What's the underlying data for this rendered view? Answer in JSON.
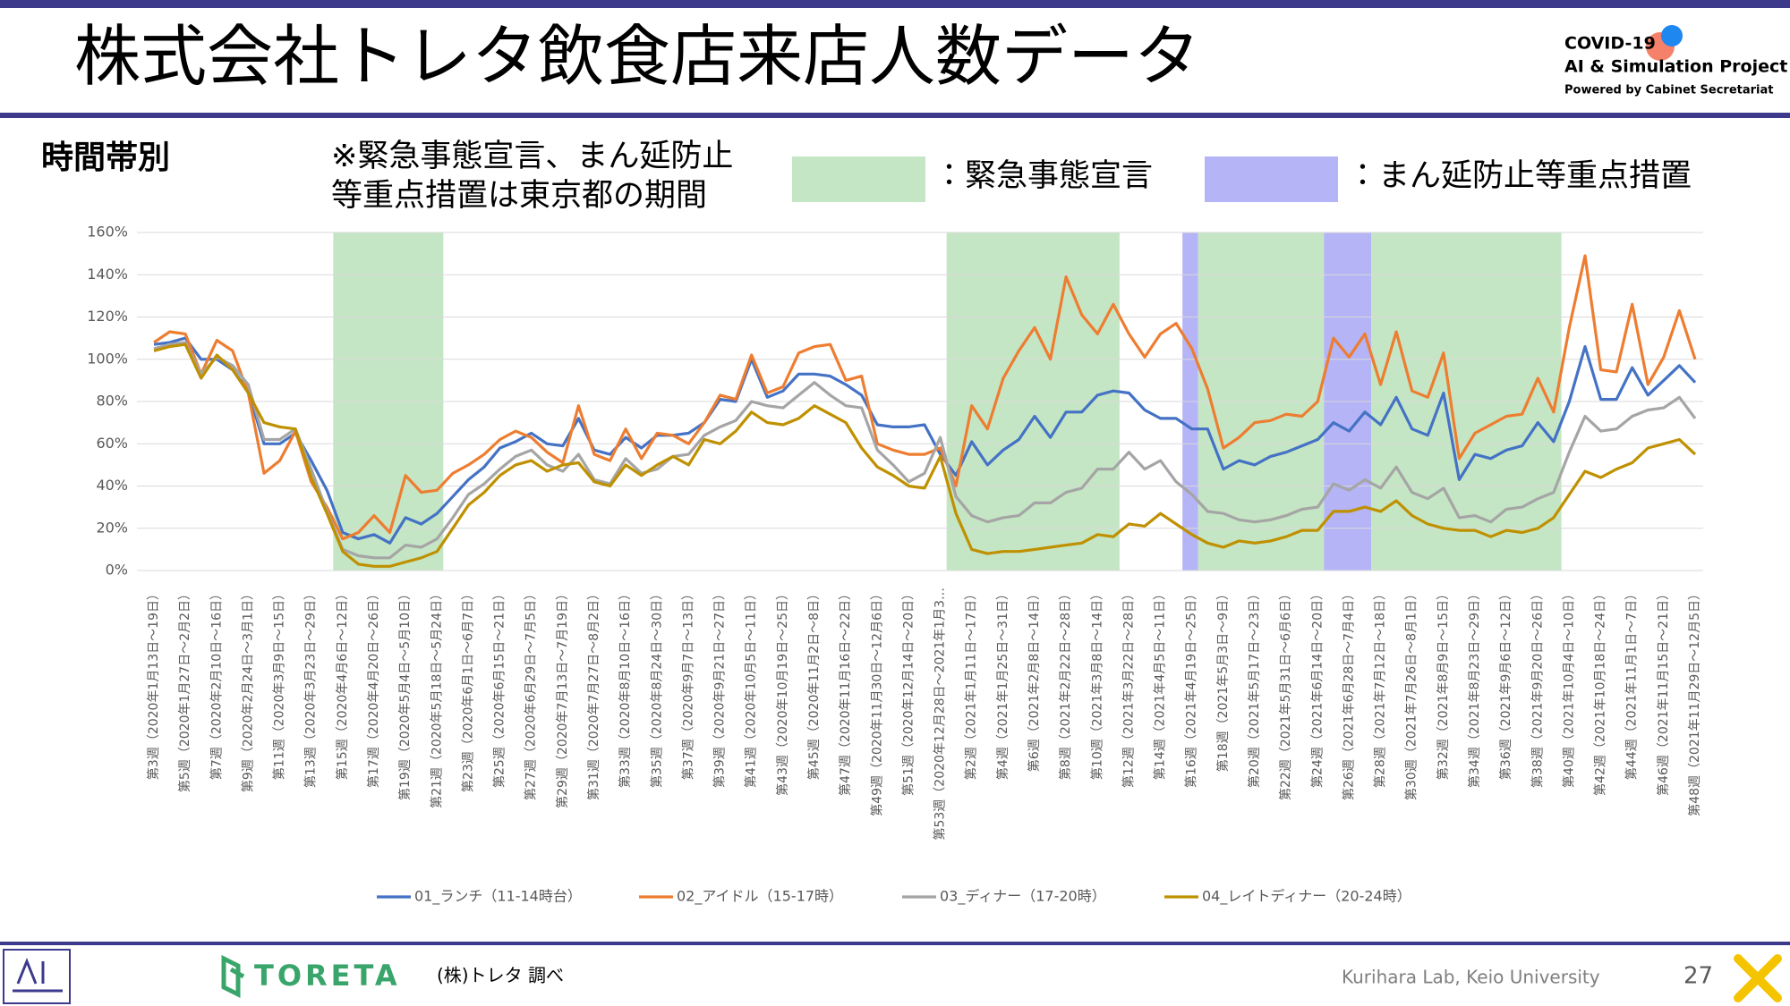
{
  "header": {
    "title": "株式会社トレタ飲食店来店人数データ",
    "logo_line1": "COVID-19",
    "logo_line2": "AI & Simulation Project",
    "logo_line3": "Powered by Cabinet Secretariat",
    "section": "時間帯別",
    "note": [
      "※緊急事態宣言、まん延防止",
      "等重点措置は東京都の期間"
    ]
  },
  "chart_data": {
    "type": "line",
    "categories": [
      "第3週（2020年1月13日～19日）",
      null,
      "第5週（2020年1月27日～2月2日）",
      null,
      "第7週（2020年2月10日～16日）",
      null,
      "第9週（2020年2月24日～3月1日）",
      null,
      "第11週（2020年3月9日～15日）",
      null,
      "第13週（2020年3月23日～29日）",
      null,
      "第15週（2020年4月6日～12日）",
      null,
      "第17週（2020年4月20日～26日）",
      null,
      "第19週（2020年5月4日～5月10日）",
      null,
      "第21週（2020年5月18日～5月24日）",
      null,
      "第23週（2020年6月1日～6月7日）",
      null,
      "第25週（2020年6月15日～21日）",
      null,
      "第27週（2020年6月29日～7月5日）",
      null,
      "第29週（2020年7月13日～7月19日）",
      null,
      "第31週（2020年7月27日～8月2日）",
      null,
      "第33週（2020年8月10日～16日）",
      null,
      "第35週（2020年8月24日～30日）",
      null,
      "第37週（2020年9月7日～13日）",
      null,
      "第39週（2020年9月21日～27日）",
      null,
      "第41週（2020年10月5日～11日）",
      null,
      "第43週（2020年10月19日～25日）",
      null,
      "第45週（2020年11月2日～8日）",
      null,
      "第47週（2020年11月16日～22日）",
      null,
      "第49週（2020年11月30日～12月6日）",
      null,
      "第51週（2020年12月14日～20日）",
      null,
      "第53週（2020年12月28日～2021年1月3…",
      null,
      "第2週（2021年1月11日～17日）",
      null,
      "第4週（2021年1月25日～31日）",
      null,
      "第6週（2021年2月8日～14日）",
      null,
      "第8週（2021年2月22日～28日）",
      null,
      "第10週（2021年3月8日～14日）",
      null,
      "第12週（2021年3月22日～28日）",
      null,
      "第14週（2021年4月5日～11日）",
      null,
      "第16週（2021年4月19日～25日）",
      null,
      "第18週（2021年5月3日～9日）",
      null,
      "第20週（2021年5月17日～23日）",
      null,
      "第22週（2021年5月31日～6月6日）",
      null,
      "第24週（2021年6月14日～20日）",
      null,
      "第26週（2021年6月28日～7月4日）",
      null,
      "第28週（2021年7月12日～18日）",
      null,
      "第30週（2021年7月26日～8月1日）",
      null,
      "第32週（2021年8月9日～15日）",
      null,
      "第34週（2021年8月23日～29日）",
      null,
      "第36週（2021年9月6日～12日）",
      null,
      "第38週（2021年9月20日～26日）",
      null,
      "第40週（2021年10月4日～10日）",
      null,
      "第42週（2021年10月18日～24日）",
      null,
      "第44週（2021年11月1日～7日）",
      null,
      "第46週（2021年11月15日～21日）",
      null,
      "第48週（2021年11月29日～12月5日）"
    ],
    "series": [
      {
        "name": "01_ランチ（11-14時台）",
        "color": "#4472c4",
        "values": [
          107,
          108,
          110,
          100,
          100,
          95,
          85,
          60,
          60,
          65,
          52,
          38,
          18,
          15,
          17,
          13,
          25,
          22,
          27,
          35,
          43,
          49,
          58,
          61,
          65,
          60,
          59,
          72,
          57,
          55,
          63,
          58,
          64,
          64,
          65,
          70,
          81,
          80,
          100,
          82,
          85,
          93,
          93,
          92,
          88,
          83,
          69,
          68,
          68,
          69,
          55,
          45,
          61,
          50,
          57,
          62,
          73,
          63,
          75,
          75,
          83,
          85,
          84,
          76,
          72,
          72,
          67,
          67,
          48,
          52,
          50,
          54,
          56,
          59,
          62,
          70,
          66,
          75,
          69,
          82,
          67,
          64,
          84,
          43,
          55,
          53,
          57,
          59,
          70,
          61,
          80,
          106,
          81,
          81,
          96,
          83,
          90,
          97,
          89
        ]
      },
      {
        "name": "02_アイドル（15-17時）",
        "color": "#ed7d31",
        "values": [
          108,
          113,
          112,
          93,
          109,
          104,
          84,
          46,
          52,
          66,
          42,
          30,
          15,
          18,
          26,
          18,
          45,
          37,
          38,
          46,
          50,
          55,
          62,
          66,
          63,
          56,
          51,
          78,
          55,
          52,
          67,
          53,
          65,
          64,
          60,
          70,
          83,
          81,
          102,
          84,
          87,
          103,
          106,
          107,
          90,
          92,
          60,
          57,
          55,
          55,
          58,
          40,
          78,
          67,
          91,
          104,
          115,
          100,
          139,
          121,
          112,
          126,
          112,
          101,
          112,
          117,
          105,
          86,
          58,
          63,
          70,
          71,
          74,
          73,
          80,
          110,
          101,
          112,
          88,
          113,
          85,
          82,
          103,
          53,
          65,
          69,
          73,
          74,
          91,
          75,
          115,
          149,
          95,
          94,
          126,
          88,
          101,
          123,
          100
        ]
      },
      {
        "name": "03_ディナー（17-20時）",
        "color": "#a5a5a5",
        "values": [
          105,
          107,
          108,
          93,
          101,
          97,
          88,
          62,
          62,
          67,
          48,
          28,
          10,
          7,
          6,
          6,
          12,
          11,
          15,
          25,
          36,
          41,
          48,
          54,
          57,
          50,
          47,
          55,
          43,
          41,
          53,
          46,
          48,
          54,
          55,
          64,
          68,
          71,
          80,
          78,
          77,
          83,
          89,
          83,
          78,
          77,
          57,
          50,
          42,
          46,
          63,
          35,
          26,
          23,
          25,
          26,
          32,
          32,
          37,
          39,
          48,
          48,
          56,
          48,
          52,
          42,
          36,
          28,
          27,
          24,
          23,
          24,
          26,
          29,
          30,
          41,
          38,
          43,
          39,
          49,
          37,
          34,
          39,
          25,
          26,
          23,
          29,
          30,
          34,
          37,
          56,
          73,
          66,
          67,
          73,
          76,
          77,
          82,
          72
        ]
      },
      {
        "name": "04_レイトディナー（20-24時）",
        "color": "#bf9000",
        "values": [
          104,
          106,
          107,
          91,
          102,
          95,
          84,
          70,
          68,
          67,
          44,
          27,
          9,
          3,
          2,
          2,
          4,
          6,
          9,
          20,
          31,
          37,
          45,
          50,
          52,
          47,
          50,
          51,
          42,
          40,
          50,
          45,
          50,
          54,
          50,
          62,
          60,
          66,
          75,
          70,
          69,
          72,
          78,
          74,
          70,
          58,
          49,
          45,
          40,
          39,
          54,
          27,
          10,
          8,
          9,
          9,
          10,
          11,
          12,
          13,
          17,
          16,
          22,
          21,
          27,
          22,
          17,
          13,
          11,
          14,
          13,
          14,
          16,
          19,
          19,
          28,
          28,
          30,
          28,
          33,
          26,
          22,
          20,
          19,
          19,
          16,
          19,
          18,
          20,
          25,
          36,
          47,
          44,
          48,
          51,
          58,
          60,
          62,
          55
        ]
      }
    ],
    "ylim": [
      0,
      160
    ],
    "yticks": [
      {
        "value": 0,
        "label": "0%"
      },
      {
        "value": 20,
        "label": "20%"
      },
      {
        "value": 40,
        "label": "40%"
      },
      {
        "value": 60,
        "label": "60%"
      },
      {
        "value": 80,
        "label": "80%"
      },
      {
        "value": 100,
        "label": "100%"
      },
      {
        "value": 120,
        "label": "120%"
      },
      {
        "value": 140,
        "label": "140%"
      },
      {
        "value": 160,
        "label": "160%"
      }
    ],
    "grid": true,
    "legend": "bottom",
    "band_legend": [
      {
        "label": "：緊急事態宣言",
        "color": "#c5e6c4"
      },
      {
        "label": "：まん延防止等重点措置",
        "color": "#b4b4f6"
      }
    ],
    "bands": [
      {
        "kind": 0,
        "from": 11.4,
        "to": 18.4
      },
      {
        "kind": 0,
        "from": 50.4,
        "to": 61.4
      },
      {
        "kind": 1,
        "from": 65.4,
        "to": 66.4
      },
      {
        "kind": 0,
        "from": 66.4,
        "to": 74.4
      },
      {
        "kind": 1,
        "from": 74.4,
        "to": 77.4
      },
      {
        "kind": 0,
        "from": 77.4,
        "to": 89.5
      }
    ]
  },
  "footer": {
    "brand": "TORETA",
    "source": "(株)トレタ 調べ",
    "lab": "Kurihara Lab, Keio University",
    "page": "27"
  }
}
